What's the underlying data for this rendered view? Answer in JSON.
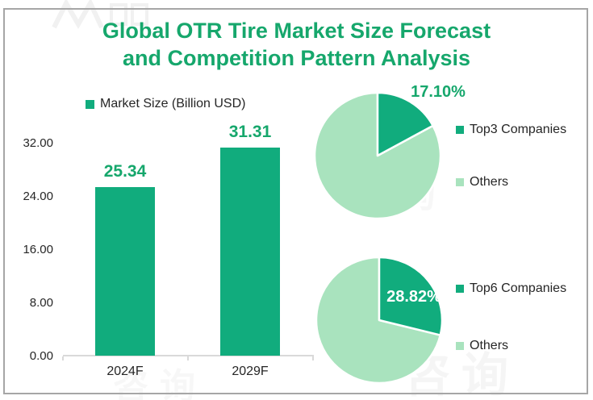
{
  "title": {
    "line1": "Global OTR Tire Market Size Forecast",
    "line2": "and Competition Pattern Analysis"
  },
  "colors": {
    "accent_fill": "#11AC7D",
    "accent_text": "#16A76C",
    "light_fill": "#A9E3BE",
    "axis_line": "#D9D9D9",
    "text_dark": "#262626",
    "frame_border": "#A6A6A6"
  },
  "watermarks": [
    "咨询",
    "咨询",
    "咨询"
  ],
  "chart_data": [
    {
      "type": "bar",
      "title": "",
      "legend": [
        "Market Size (Billion USD)"
      ],
      "legend_position": "top-left",
      "categories": [
        "2024F",
        "2029F"
      ],
      "values": [
        25.34,
        31.31
      ],
      "data_labels": [
        "25.34",
        "31.31"
      ],
      "xlabel": "",
      "ylabel": "",
      "ylim": [
        0,
        32
      ],
      "y_ticks": [
        "0.00",
        "8.00",
        "16.00",
        "24.00",
        "32.00"
      ],
      "grid": false,
      "bar_color": "#11AC7D"
    },
    {
      "type": "pie",
      "labels": [
        "Top3 Companies",
        "Others"
      ],
      "values": [
        17.1,
        82.9
      ],
      "data_label": "17.10%",
      "legend_position": "right",
      "slice_colors": [
        "#11AC7D",
        "#A9E3BE"
      ],
      "start_angle_deg": 0,
      "direction": "clockwise"
    },
    {
      "type": "pie",
      "labels": [
        "Top6 Companies",
        "Others"
      ],
      "values": [
        28.82,
        71.18
      ],
      "data_label": "28.82%",
      "legend_position": "right",
      "slice_colors": [
        "#11AC7D",
        "#A9E3BE"
      ],
      "start_angle_deg": 0,
      "direction": "clockwise"
    }
  ]
}
